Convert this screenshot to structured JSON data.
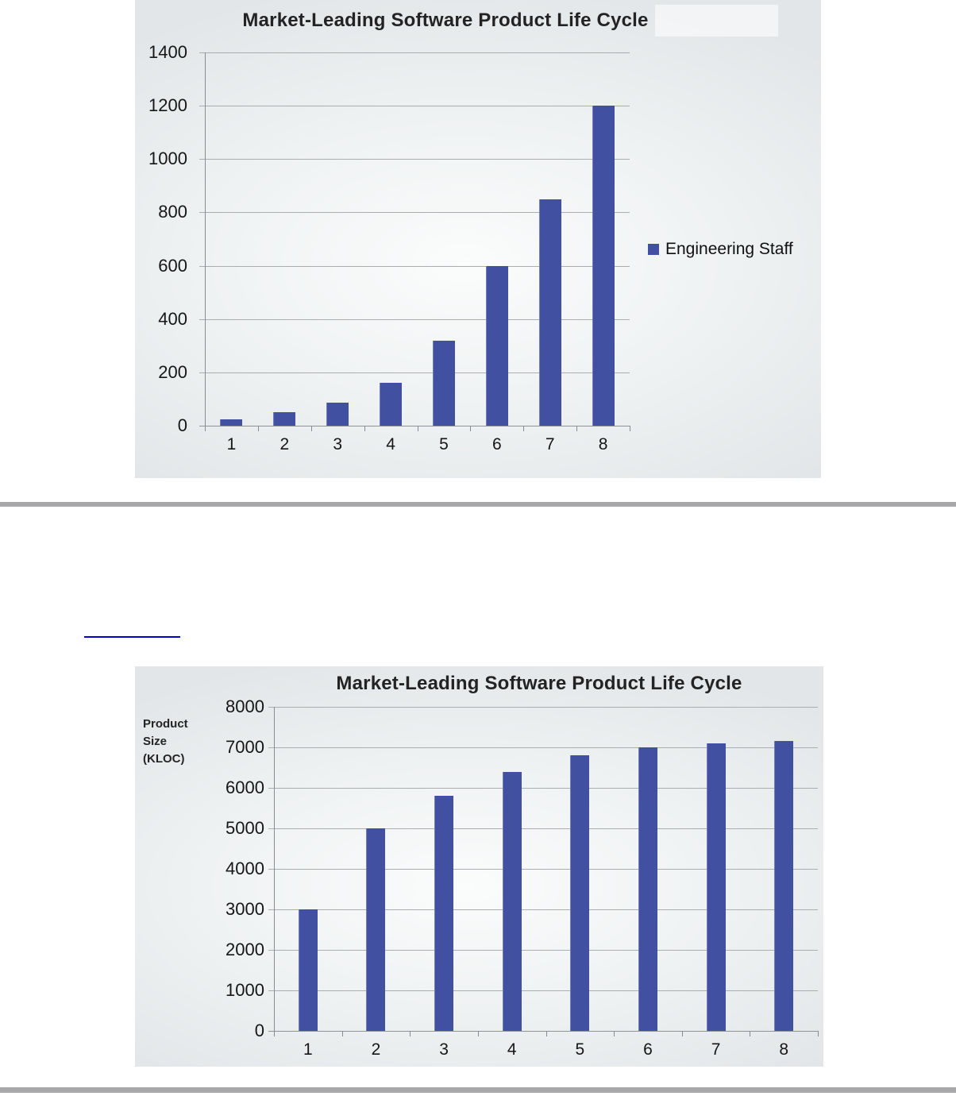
{
  "page": {
    "background": "#ffffff",
    "divider_color": "#a8a8ab",
    "link_underline_color": "#0202cd"
  },
  "chart_data": [
    {
      "type": "bar",
      "title": "Market-Leading Software Product Life Cycle",
      "xlabel": "",
      "ylabel": "",
      "categories": [
        "1",
        "2",
        "3",
        "4",
        "5",
        "6",
        "7",
        "8"
      ],
      "series": [
        {
          "name": "Engineering Staff",
          "values": [
            25,
            50,
            85,
            160,
            320,
            600,
            850,
            1200
          ]
        }
      ],
      "ylim": [
        0,
        1400
      ],
      "ytick_step": 200,
      "yticks": [
        "0",
        "200",
        "400",
        "600",
        "800",
        "1000",
        "1200",
        "1400"
      ],
      "grid": true,
      "legend": {
        "visible": true,
        "label": "Engineering Staff",
        "position": "right-middle"
      },
      "bar_color": "#4250a2"
    },
    {
      "type": "bar",
      "title": "Market-Leading Software Product Life Cycle",
      "xlabel": "",
      "ylabel": "Product Size (KLOC)",
      "ylabel_lines": [
        "Product",
        "Size",
        "(KLOC)"
      ],
      "categories": [
        "1",
        "2",
        "3",
        "4",
        "5",
        "6",
        "7",
        "8"
      ],
      "series": [
        {
          "name": "Product Size (KLOC)",
          "values": [
            3000,
            5000,
            5800,
            6400,
            6800,
            7000,
            7100,
            7150
          ]
        }
      ],
      "ylim": [
        0,
        8000
      ],
      "ytick_step": 1000,
      "yticks": [
        "0",
        "1000",
        "2000",
        "3000",
        "4000",
        "5000",
        "6000",
        "7000",
        "8000"
      ],
      "grid": true,
      "legend": {
        "visible": false
      },
      "bar_color": "#4250a2"
    }
  ]
}
